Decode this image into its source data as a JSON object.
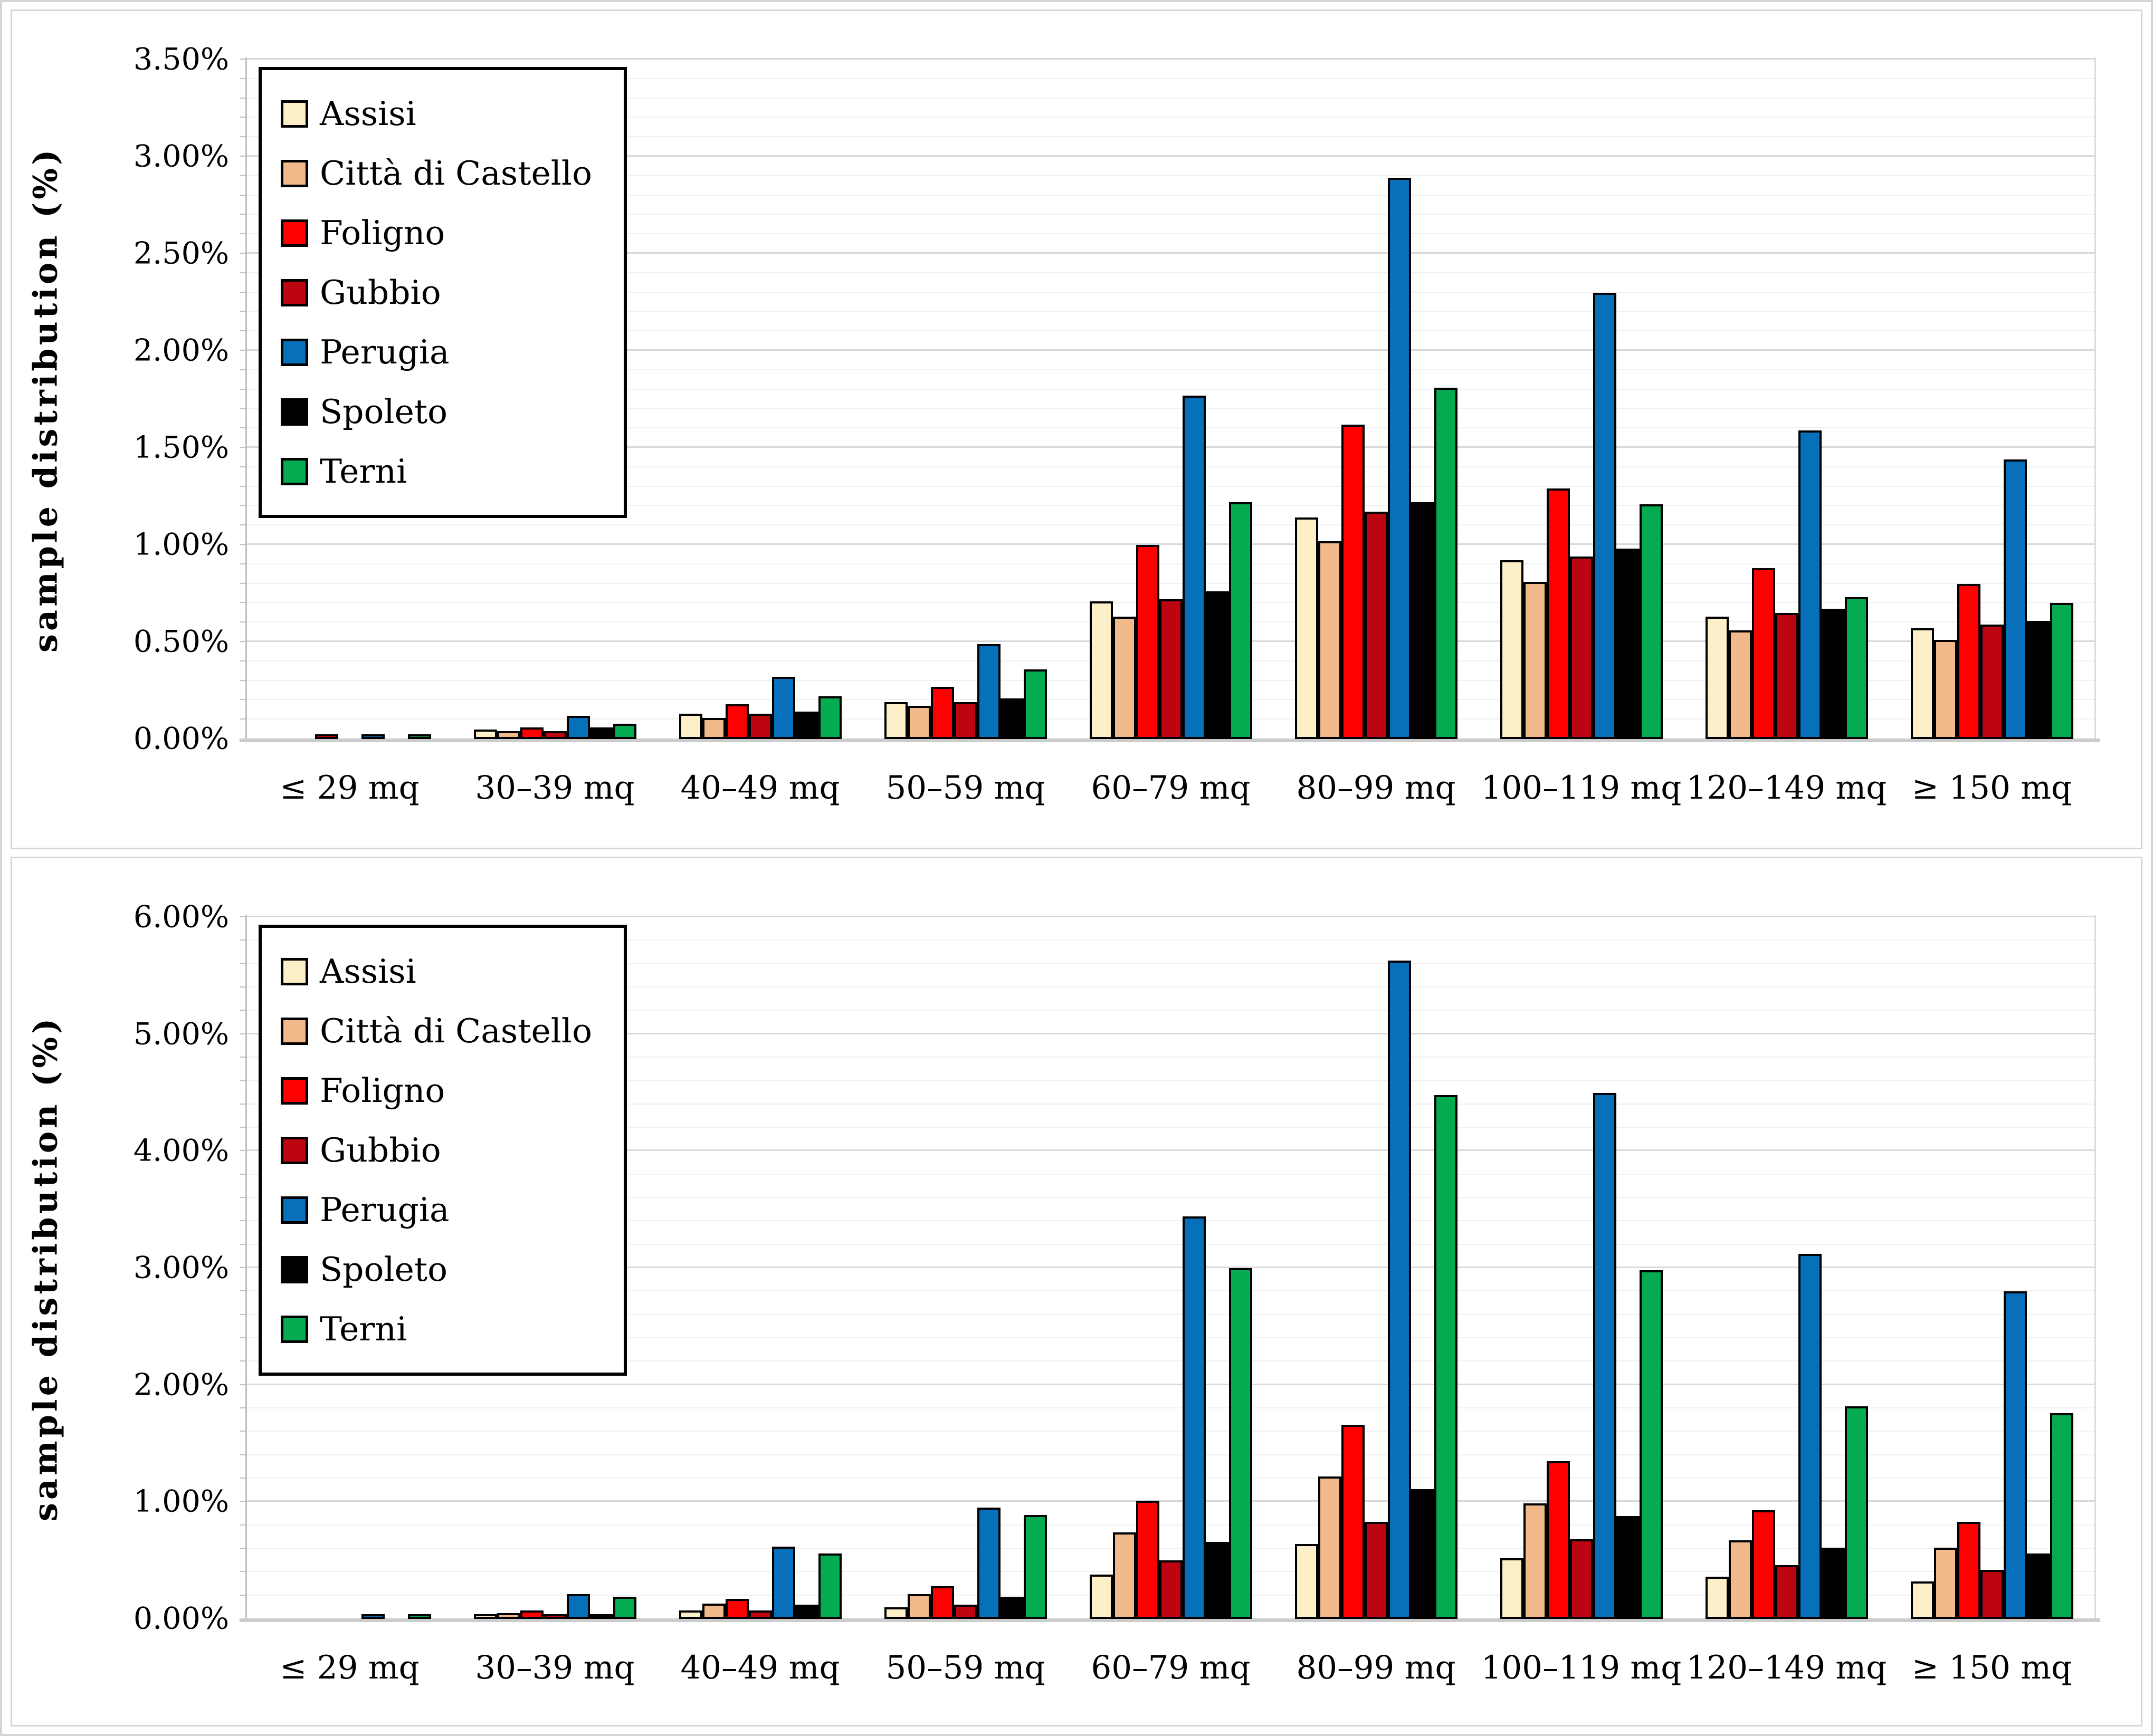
{
  "figure": {
    "description": "Two stacked grouped bar charts of housing sample distribution by floor-area class for seven Umbrian municipalities",
    "background_color": "#ffffff",
    "panel_border_color": "#d4d4d4",
    "bar_outline_color": "#000000"
  },
  "chart_data": [
    {
      "type": "bar",
      "title": "",
      "ylabel": "sample distribution (%)",
      "xlabel": "",
      "ylim": [
        0,
        3.5
      ],
      "y_major_step": 0.5,
      "y_minor_step": 0.1,
      "grid": true,
      "legend_position": "upper-left",
      "y_tick_labels": [
        "0.00%",
        "0.50%",
        "1.00%",
        "1.50%",
        "2.00%",
        "2.50%",
        "3.00%",
        "3.50%"
      ],
      "categories": [
        "≤ 29 mq",
        "30–39 mq",
        "40–49 mq",
        "50–59 mq",
        "60–79 mq",
        "80–99 mq",
        "100–119 mq",
        "120–149 mq",
        "≥ 150 mq"
      ],
      "series": [
        {
          "name": "Assisi",
          "color": "#FDF0C8",
          "values": [
            0.0,
            0.05,
            0.13,
            0.19,
            0.71,
            1.14,
            0.92,
            0.63,
            0.57
          ]
        },
        {
          "name": "Città di Castello",
          "color": "#F2B98A",
          "values": [
            0.0,
            0.04,
            0.11,
            0.17,
            0.63,
            1.02,
            0.81,
            0.56,
            0.51
          ]
        },
        {
          "name": "Foligno",
          "color": "#FE0000",
          "values": [
            0.01,
            0.06,
            0.18,
            0.27,
            1.0,
            1.62,
            1.29,
            0.88,
            0.8
          ]
        },
        {
          "name": "Gubbio",
          "color": "#BC0511",
          "values": [
            0.0,
            0.04,
            0.13,
            0.19,
            0.72,
            1.17,
            0.94,
            0.65,
            0.59
          ]
        },
        {
          "name": "Perugia",
          "color": "#0670BB",
          "values": [
            0.01,
            0.12,
            0.32,
            0.49,
            1.77,
            2.89,
            2.3,
            1.59,
            1.44
          ]
        },
        {
          "name": "Spoleto",
          "color": "#000000",
          "values": [
            0.0,
            0.06,
            0.14,
            0.21,
            0.76,
            1.22,
            0.98,
            0.67,
            0.61
          ]
        },
        {
          "name": "Terni",
          "color": "#04AB50",
          "values": [
            0.01,
            0.08,
            0.22,
            0.36,
            1.22,
            1.81,
            1.21,
            0.73,
            0.7
          ]
        }
      ]
    },
    {
      "type": "bar",
      "title": "",
      "ylabel": "sample distribution (%)",
      "xlabel": "",
      "ylim": [
        0,
        6.0
      ],
      "y_major_step": 1.0,
      "y_minor_step": 0.2,
      "grid": true,
      "legend_position": "upper-left",
      "y_tick_labels": [
        "0.00%",
        "1.00%",
        "2.00%",
        "3.00%",
        "4.00%",
        "5.00%",
        "6.00%"
      ],
      "categories": [
        "≤ 29 mq",
        "30–39 mq",
        "40–49 mq",
        "50–59 mq",
        "60–79 mq",
        "80–99 mq",
        "100–119 mq",
        "120–149 mq",
        "≥ 150 mq"
      ],
      "series": [
        {
          "name": "Assisi",
          "color": "#FDF0C8",
          "values": [
            0.0,
            0.02,
            0.07,
            0.1,
            0.38,
            0.64,
            0.52,
            0.36,
            0.32
          ]
        },
        {
          "name": "Città di Castello",
          "color": "#F2B98A",
          "values": [
            0.0,
            0.05,
            0.13,
            0.21,
            0.74,
            1.22,
            0.99,
            0.67,
            0.61
          ]
        },
        {
          "name": "Foligno",
          "color": "#FE0000",
          "values": [
            0.0,
            0.07,
            0.17,
            0.28,
            1.01,
            1.66,
            1.35,
            0.93,
            0.83
          ]
        },
        {
          "name": "Gubbio",
          "color": "#BC0511",
          "values": [
            0.0,
            0.03,
            0.07,
            0.12,
            0.5,
            0.83,
            0.68,
            0.46,
            0.42
          ]
        },
        {
          "name": "Perugia",
          "color": "#0670BB",
          "values": [
            0.02,
            0.21,
            0.62,
            0.95,
            3.44,
            5.63,
            4.5,
            3.12,
            2.8
          ]
        },
        {
          "name": "Spoleto",
          "color": "#000000",
          "values": [
            0.0,
            0.04,
            0.12,
            0.19,
            0.66,
            1.11,
            0.88,
            0.61,
            0.56
          ]
        },
        {
          "name": "Terni",
          "color": "#04AB50",
          "values": [
            0.02,
            0.19,
            0.56,
            0.89,
            3.0,
            4.48,
            2.98,
            1.82,
            1.76
          ]
        }
      ]
    }
  ]
}
